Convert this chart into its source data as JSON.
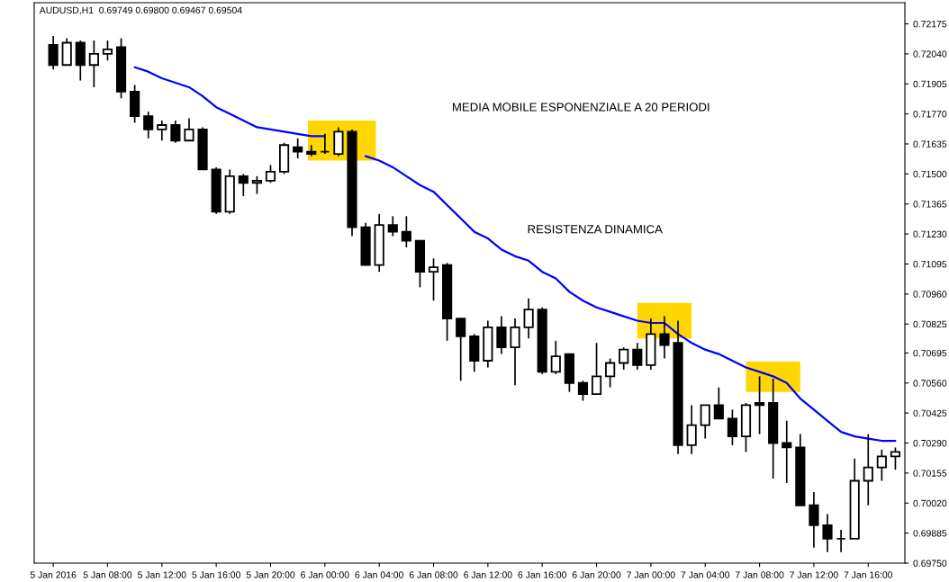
{
  "chart_data": {
    "type": "candlestick",
    "title": "AUDUSD,H1  0.69749 0.69800 0.69467 0.69504",
    "annotations": [
      "MEDIA MOBILE ESPONENZIALE A 20 PERIODI",
      "RESISTENZA DINAMICA"
    ],
    "categories": [
      "5 Jan 2016",
      null,
      null,
      null,
      "5 Jan 08:00",
      null,
      null,
      null,
      "5 Jan 12:00",
      null,
      null,
      null,
      "5 Jan 16:00",
      null,
      null,
      null,
      "5 Jan 20:00",
      null,
      null,
      null,
      "6 Jan 00:00",
      null,
      null,
      null,
      "6 Jan 04:00",
      null,
      null,
      null,
      "6 Jan 08:00",
      null,
      null,
      null,
      "6 Jan 12:00",
      null,
      null,
      null,
      "6 Jan 16:00",
      null,
      null,
      null,
      "6 Jan 20:00",
      null,
      null,
      null,
      "7 Jan 00:00",
      null,
      null,
      null,
      "7 Jan 04:00",
      null,
      null,
      null,
      "7 Jan 08:00",
      null,
      null,
      null,
      "7 Jan 12:00",
      null,
      null,
      null,
      "7 Jan 16:00",
      null,
      null
    ],
    "ohlc": [
      [
        0.7208,
        0.7212,
        0.7197,
        0.7199
      ],
      [
        0.7199,
        0.7211,
        0.7199,
        0.7209
      ],
      [
        0.7209,
        0.721,
        0.7192,
        0.7199
      ],
      [
        0.7199,
        0.721,
        0.7189,
        0.7204
      ],
      [
        0.7204,
        0.721,
        0.7201,
        0.7206
      ],
      [
        0.7207,
        0.7211,
        0.7184,
        0.7187
      ],
      [
        0.7187,
        0.719,
        0.7173,
        0.7176
      ],
      [
        0.7176,
        0.7178,
        0.7166,
        0.717
      ],
      [
        0.717,
        0.7174,
        0.7165,
        0.7172
      ],
      [
        0.7172,
        0.7174,
        0.7164,
        0.7165
      ],
      [
        0.7165,
        0.7175,
        0.7165,
        0.717
      ],
      [
        0.717,
        0.7171,
        0.7152,
        0.7152
      ],
      [
        0.7152,
        0.7153,
        0.7132,
        0.7133
      ],
      [
        0.7133,
        0.7152,
        0.7132,
        0.7149
      ],
      [
        0.7149,
        0.715,
        0.714,
        0.7146
      ],
      [
        0.7146,
        0.7149,
        0.7141,
        0.7147
      ],
      [
        0.7147,
        0.7154,
        0.7146,
        0.7151
      ],
      [
        0.7151,
        0.7164,
        0.715,
        0.7163
      ],
      [
        0.7162,
        0.7166,
        0.7157,
        0.716
      ],
      [
        0.716,
        0.7163,
        0.7158,
        0.7159
      ],
      [
        0.716,
        0.7168,
        0.7159,
        0.716
      ],
      [
        0.7159,
        0.7171,
        0.7158,
        0.7169
      ],
      [
        0.7169,
        0.717,
        0.7122,
        0.7126
      ],
      [
        0.7126,
        0.7128,
        0.7109,
        0.7109
      ],
      [
        0.7109,
        0.7132,
        0.7106,
        0.7127
      ],
      [
        0.7127,
        0.7131,
        0.7122,
        0.7124
      ],
      [
        0.7124,
        0.7131,
        0.7117,
        0.712
      ],
      [
        0.712,
        0.712,
        0.7099,
        0.7106
      ],
      [
        0.7106,
        0.7112,
        0.7093,
        0.7108
      ],
      [
        0.7109,
        0.711,
        0.7075,
        0.7085
      ],
      [
        0.7085,
        0.7085,
        0.7057,
        0.7077
      ],
      [
        0.7077,
        0.7078,
        0.7061,
        0.7066
      ],
      [
        0.7066,
        0.7084,
        0.7063,
        0.7081
      ],
      [
        0.7081,
        0.7086,
        0.7069,
        0.7072
      ],
      [
        0.7072,
        0.7085,
        0.7055,
        0.7081
      ],
      [
        0.7081,
        0.7094,
        0.7076,
        0.7089
      ],
      [
        0.7089,
        0.709,
        0.706,
        0.7061
      ],
      [
        0.7061,
        0.7075,
        0.706,
        0.7068
      ],
      [
        0.7069,
        0.7069,
        0.7052,
        0.7056
      ],
      [
        0.7056,
        0.7057,
        0.7048,
        0.7051
      ],
      [
        0.7051,
        0.7074,
        0.7051,
        0.7059
      ],
      [
        0.7059,
        0.7067,
        0.7054,
        0.7065
      ],
      [
        0.7065,
        0.7072,
        0.7062,
        0.7071
      ],
      [
        0.7071,
        0.7074,
        0.7062,
        0.7064
      ],
      [
        0.7064,
        0.7085,
        0.7062,
        0.7078
      ],
      [
        0.7078,
        0.7086,
        0.7067,
        0.7073
      ],
      [
        0.7074,
        0.7084,
        0.7024,
        0.7028
      ],
      [
        0.7028,
        0.7046,
        0.7024,
        0.7037
      ],
      [
        0.7037,
        0.7046,
        0.7031,
        0.7046
      ],
      [
        0.7046,
        0.7054,
        0.704,
        0.704
      ],
      [
        0.704,
        0.7044,
        0.7028,
        0.7032
      ],
      [
        0.7032,
        0.7047,
        0.7025,
        0.7046
      ],
      [
        0.7047,
        0.7059,
        0.7033,
        0.7046
      ],
      [
        0.7047,
        0.7058,
        0.7013,
        0.7029
      ],
      [
        0.7029,
        0.7039,
        0.7011,
        0.7027
      ],
      [
        0.7027,
        0.7033,
        0.7001,
        0.7001
      ],
      [
        0.7001,
        0.7007,
        0.6982,
        0.6992
      ],
      [
        0.6992,
        0.6997,
        0.698,
        0.6986
      ],
      [
        0.6986,
        0.699,
        0.698,
        0.6986
      ],
      [
        0.6986,
        0.7022,
        0.6986,
        0.7012
      ],
      [
        0.7012,
        0.7033,
        0.7001,
        0.7018
      ],
      [
        0.7018,
        0.7026,
        0.7012,
        0.7023
      ],
      [
        0.7023,
        0.7027,
        0.7017,
        0.7025
      ]
    ],
    "series": [
      {
        "type": "line",
        "color": "#0000ff",
        "values": [
          null,
          null,
          null,
          null,
          null,
          null,
          0.7198,
          0.7196,
          0.7193,
          0.7191,
          0.7189,
          0.7185,
          0.718,
          0.7177,
          0.7174,
          0.7171,
          0.717,
          0.7169,
          0.7168,
          0.7167,
          0.7167,
          null,
          null,
          0.7158,
          0.7156,
          0.7153,
          0.7149,
          0.7145,
          0.7142,
          0.7136,
          0.713,
          0.7124,
          0.7121,
          0.7116,
          0.7113,
          0.7111,
          0.7106,
          0.7103,
          0.7097,
          0.7093,
          0.709,
          0.7088,
          0.7086,
          0.7084,
          0.7083,
          0.7083,
          0.7078,
          0.7074,
          0.7071,
          0.7069,
          0.7066,
          0.7063,
          0.7061,
          0.7059,
          0.7056,
          0.7049,
          0.7044,
          0.7039,
          0.7034,
          0.7032,
          0.7031,
          0.703,
          0.703
        ]
      }
    ],
    "ylim": [
      0.6975,
      0.7227
    ],
    "yticks": [
      0.72175,
      {
        "value": 0.7204,
        "label": "0.72040"
      },
      0.71905,
      {
        "value": 0.7177,
        "label": "0.71770"
      },
      0.71635,
      {
        "value": 0.715,
        "label": "0.71500"
      },
      0.71365,
      {
        "value": 0.7123,
        "label": "0.71230"
      },
      0.71095,
      {
        "value": 0.7096,
        "label": "0.70960"
      },
      0.70825,
      0.70695,
      {
        "value": 0.7056,
        "label": "0.70560"
      },
      0.70425,
      {
        "value": 0.7029,
        "label": "0.70290"
      },
      0.70155,
      {
        "value": 0.7002,
        "label": "0.70020"
      },
      0.69885,
      {
        "value": 0.6975,
        "label": "0.69750"
      }
    ],
    "grid": false,
    "legend": false
  }
}
